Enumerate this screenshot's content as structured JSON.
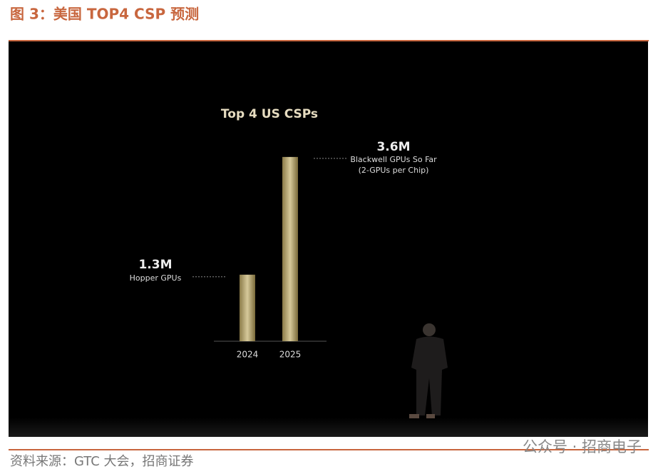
{
  "figure": {
    "caption": "图 3：美国 TOP4 CSP 预测",
    "source": "资料来源：GTC 大会，招商证券",
    "watermark": "公众号 · 招商电子"
  },
  "chart_data": {
    "type": "bar",
    "title": "Top 4 US CSPs",
    "categories": [
      "2024",
      "2025"
    ],
    "values": [
      1.3,
      3.6
    ],
    "value_labels": [
      "1.3M",
      "3.6M"
    ],
    "annotations": [
      [
        "Hopper GPUs"
      ],
      [
        "Blackwell GPUs So Far",
        "(2-GPUs per Chip)"
      ]
    ],
    "color": "#d6c99a"
  }
}
